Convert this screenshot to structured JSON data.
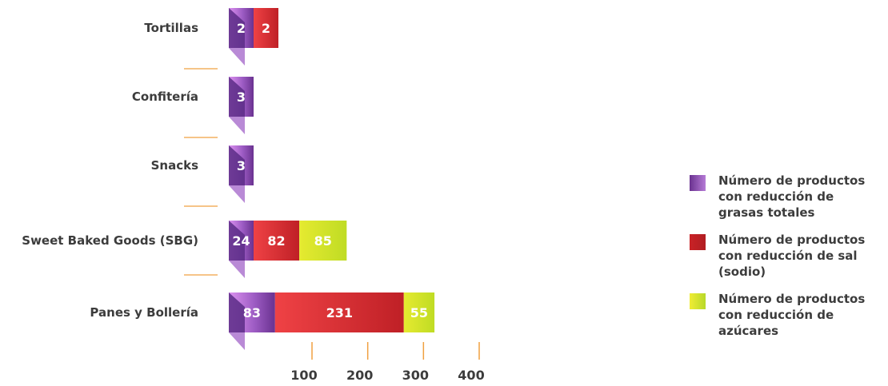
{
  "chart_data": {
    "type": "bar",
    "orientation": "horizontal",
    "stacked": true,
    "categories": [
      "Tortillas",
      "Confitería",
      "Snacks",
      "Sweet Baked Goods (SBG)",
      "Panes y Bollería"
    ],
    "series": [
      {
        "name": "Número de productos con reducción de grasas totales",
        "values": [
          2,
          3,
          3,
          24,
          83
        ],
        "color": "#7b3fa0"
      },
      {
        "name": "Número de productos con reducción de sal (sodio)",
        "values": [
          2,
          null,
          null,
          82,
          231
        ],
        "color": "#d6282f"
      },
      {
        "name": "Número de productos con reducción de azúcares",
        "values": [
          null,
          null,
          null,
          85,
          55
        ],
        "color": "#cde22a"
      }
    ],
    "x_ticks": [
      "100",
      "200",
      "300",
      "400"
    ],
    "legend_position": "right",
    "grid": false
  }
}
